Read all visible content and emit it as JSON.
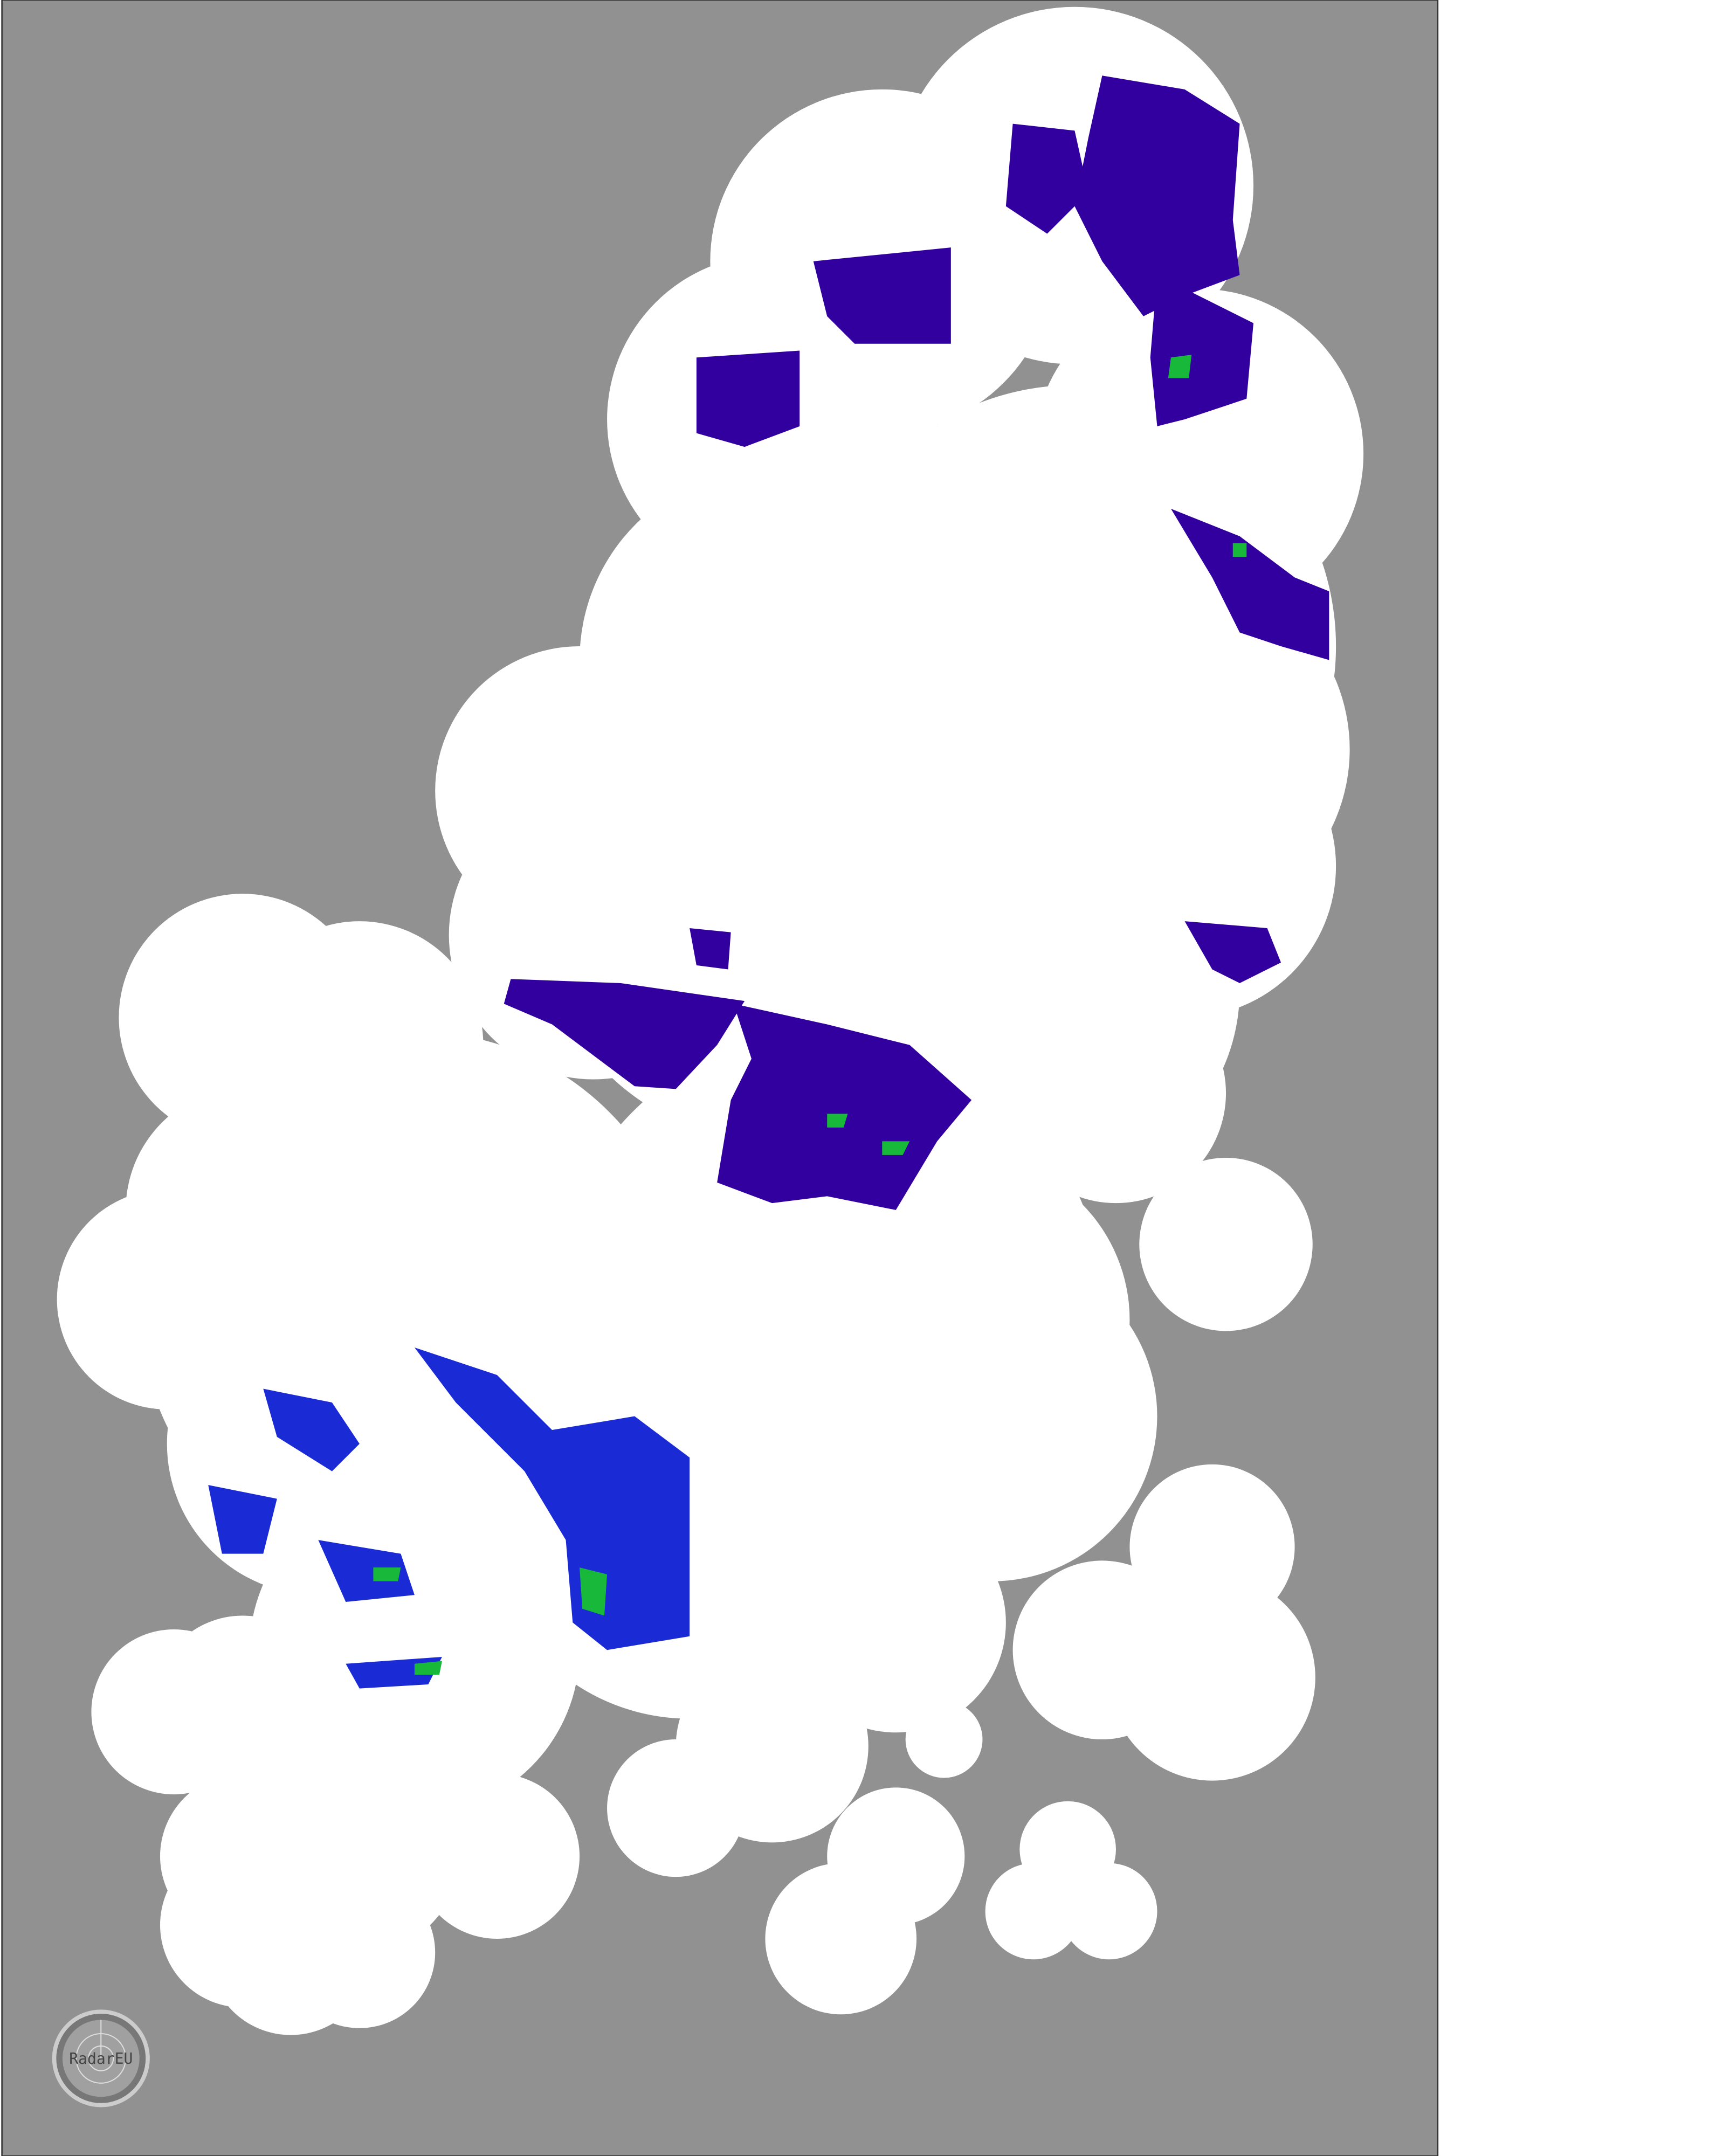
{
  "map": {
    "background_color": "#919191",
    "coverage_color": "#ffffff",
    "border_color": "#333333",
    "echo_colors": {
      "light": "#3300a0",
      "moderate": "#1a2bd6",
      "heavy": "#18b83a"
    }
  },
  "logo": {
    "text": "RadarEU",
    "icon": "radar-globe-icon"
  }
}
